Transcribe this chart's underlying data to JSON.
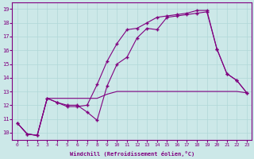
{
  "xlabel": "Windchill (Refroidissement éolien,°C)",
  "xlim": [
    -0.5,
    23.5
  ],
  "ylim": [
    9.5,
    19.5
  ],
  "xticks": [
    0,
    1,
    2,
    3,
    4,
    5,
    6,
    7,
    8,
    9,
    10,
    11,
    12,
    13,
    14,
    15,
    16,
    17,
    18,
    19,
    20,
    21,
    22,
    23
  ],
  "yticks": [
    10,
    11,
    12,
    13,
    14,
    15,
    16,
    17,
    18,
    19
  ],
  "bg_color": "#cce8e8",
  "line_color": "#800080",
  "grid_color": "#b0d8d8",
  "series1_x": [
    0,
    1,
    2,
    3,
    4,
    5,
    6,
    7,
    8,
    9,
    10,
    11,
    12,
    13,
    14,
    15,
    16,
    17,
    18,
    19,
    20,
    21,
    22,
    23
  ],
  "series1_y": [
    10.7,
    9.9,
    9.8,
    12.5,
    12.2,
    12.0,
    12.0,
    11.5,
    10.9,
    13.4,
    15.0,
    15.5,
    16.9,
    17.6,
    17.5,
    18.4,
    18.5,
    18.6,
    18.7,
    18.8,
    16.1,
    14.3,
    13.8,
    12.9
  ],
  "series2_x": [
    0,
    1,
    2,
    3,
    4,
    5,
    6,
    7,
    8,
    9,
    10,
    11,
    12,
    13,
    14,
    15,
    16,
    17,
    18,
    19,
    20,
    21,
    22,
    23
  ],
  "series2_y": [
    10.7,
    9.9,
    9.8,
    12.5,
    12.5,
    12.5,
    12.5,
    12.5,
    12.5,
    12.8,
    13.0,
    13.0,
    13.0,
    13.0,
    13.0,
    13.0,
    13.0,
    13.0,
    13.0,
    13.0,
    13.0,
    13.0,
    13.0,
    12.9
  ],
  "series3_x": [
    0,
    1,
    2,
    3,
    4,
    5,
    6,
    7,
    8,
    9,
    10,
    11,
    12,
    13,
    14,
    15,
    16,
    17,
    18,
    19,
    20,
    21,
    22,
    23
  ],
  "series3_y": [
    10.7,
    9.9,
    9.8,
    12.5,
    12.2,
    11.9,
    11.9,
    12.0,
    13.5,
    15.2,
    16.5,
    17.5,
    17.6,
    18.0,
    18.4,
    18.5,
    18.6,
    18.7,
    18.9,
    18.9,
    16.1,
    14.3,
    13.8,
    12.9
  ]
}
